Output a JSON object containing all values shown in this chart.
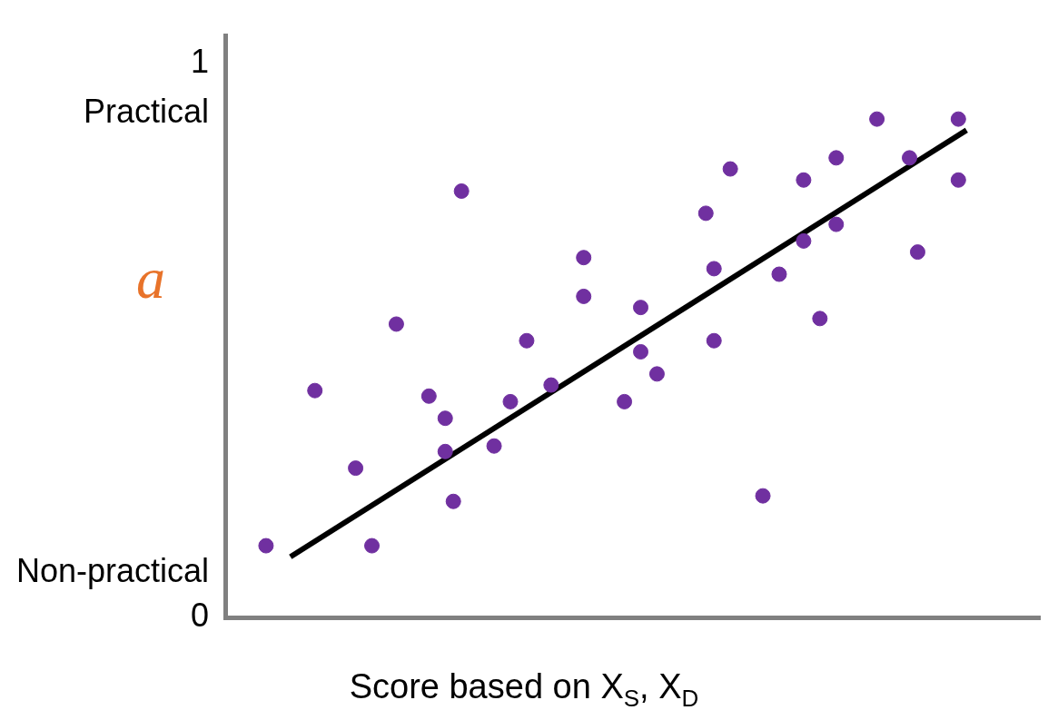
{
  "chart_data": {
    "type": "scatter",
    "xlabel": "Score based on X$_{S}$, X$_{D}$",
    "ylabel": "a",
    "categories": [
      null,
      null,
      null,
      null,
      null,
      null,
      null,
      null,
      null,
      null,
      null,
      null,
      null,
      null,
      null,
      null,
      null,
      null,
      null,
      null,
      null,
      null,
      null,
      null,
      null,
      null,
      null,
      null,
      null,
      null,
      null,
      null,
      null,
      null,
      null,
      null,
      null,
      null,
      null,
      null,
      null,
      null,
      null,
      null,
      null,
      null,
      null,
      null,
      null,
      null,
      null,
      null,
      null,
      null,
      null,
      null,
      null,
      null,
      null,
      null,
      null,
      null,
      null,
      null,
      null,
      null,
      null,
      null,
      null,
      null,
      null,
      null,
      null,
      null,
      null,
      null,
      null,
      null,
      null,
      null,
      null,
      null,
      null,
      null,
      null,
      null,
      null,
      null,
      null,
      null,
      null,
      null,
      null,
      null,
      null,
      null,
      null,
      null,
      null,
      null,
      null
    ],
    "ylim": [
      0,
      1.05
    ],
    "yticks": [
      {
        "value": 0,
        "label": "0"
      },
      {
        "value": 0.08,
        "label": "Non-practical"
      },
      {
        "value": 0.91,
        "label": "Practical"
      },
      {
        "value": 1,
        "label": "1"
      }
    ],
    "tick_labels": "y",
    "grid": false,
    "legend": false,
    "marker": "circle",
    "series": [
      {
        "color": "#7030a0",
        "values": [
          null,
          null,
          null,
          null,
          null,
          0.13,
          null,
          null,
          null,
          null,
          null,
          0.41,
          null,
          null,
          null,
          null,
          0.27,
          null,
          0.13,
          null,
          null,
          0.53,
          null,
          null,
          null,
          0.4,
          null,
          0.36,
          0.21,
          0.77,
          null,
          null,
          null,
          0.31,
          null,
          0.39,
          null,
          0.5,
          null,
          null,
          0.42,
          null,
          null,
          null,
          0.65,
          null,
          null,
          null,
          null,
          0.39,
          null,
          0.48,
          null,
          0.44,
          null,
          null,
          null,
          null,
          null,
          0.73,
          0.63,
          null,
          0.81,
          null,
          null,
          null,
          0.22,
          null,
          0.62,
          null,
          null,
          0.68,
          null,
          0.54,
          null,
          0.71,
          null,
          null,
          null,
          null,
          0.9,
          null,
          null,
          null,
          0.83,
          0.66,
          null,
          null,
          null,
          null,
          0.9,
          null,
          null,
          null,
          null,
          null,
          null,
          null,
          null,
          null,
          null
        ]
      },
      {
        "color": "#7030a0",
        "values": [
          null,
          null,
          null,
          null,
          null,
          null,
          null,
          null,
          null,
          null,
          null,
          null,
          null,
          null,
          null,
          null,
          null,
          null,
          null,
          null,
          null,
          null,
          null,
          null,
          null,
          null,
          null,
          0.3,
          null,
          null,
          null,
          null,
          null,
          null,
          null,
          null,
          null,
          null,
          null,
          null,
          null,
          null,
          null,
          null,
          0.58,
          null,
          null,
          null,
          null,
          null,
          null,
          0.56,
          null,
          null,
          null,
          null,
          null,
          null,
          null,
          null,
          0.5,
          null,
          null,
          null,
          null,
          null,
          null,
          null,
          null,
          null,
          null,
          0.79,
          null,
          null,
          null,
          0.83,
          null,
          null,
          null,
          null,
          null,
          null,
          null,
          null,
          null,
          null,
          null,
          null,
          null,
          null,
          0.79,
          null,
          null,
          null,
          null,
          null,
          null,
          null,
          null,
          null,
          null
        ]
      },
      {
        "type": "line",
        "marker": "none",
        "color": "#000000",
        "values": [
          null,
          null,
          null,
          null,
          null,
          null,
          null,
          null,
          0.11,
          null,
          null,
          null,
          null,
          null,
          null,
          null,
          null,
          null,
          null,
          null,
          null,
          null,
          null,
          null,
          null,
          null,
          null,
          null,
          null,
          null,
          null,
          null,
          null,
          null,
          null,
          null,
          null,
          null,
          null,
          null,
          null,
          null,
          null,
          null,
          null,
          null,
          null,
          null,
          null,
          null,
          null,
          null,
          null,
          null,
          null,
          null,
          null,
          null,
          null,
          null,
          null,
          null,
          null,
          null,
          null,
          null,
          null,
          null,
          null,
          null,
          null,
          null,
          null,
          null,
          null,
          null,
          null,
          null,
          null,
          null,
          null,
          null,
          null,
          null,
          null,
          null,
          null,
          null,
          null,
          null,
          null,
          0.88,
          null,
          null,
          null,
          null,
          null,
          null,
          null,
          null,
          null
        ]
      }
    ]
  }
}
